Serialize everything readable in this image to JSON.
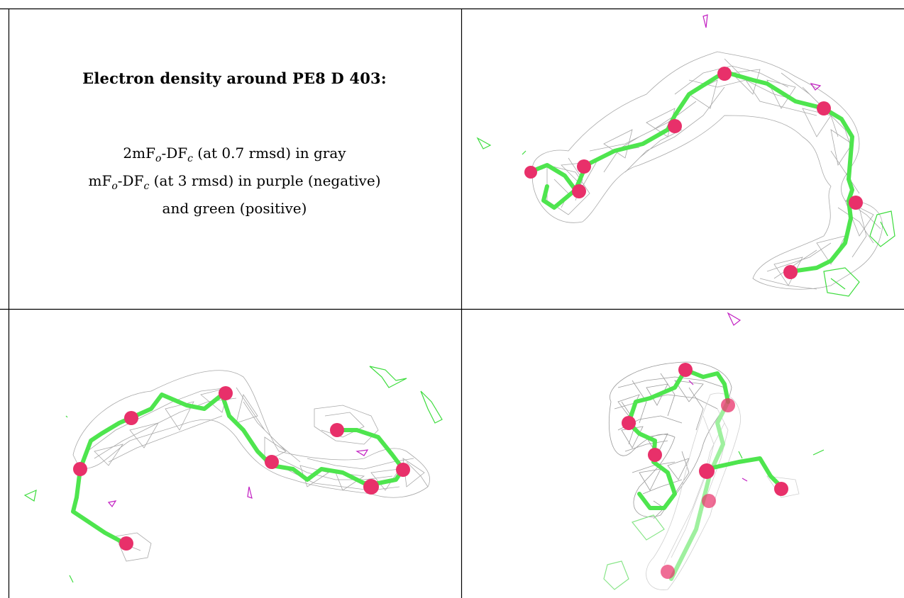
{
  "caption": {
    "title": "Electron density around PE8 D 403:",
    "line1_pre": "2mF",
    "line1_sub1": "o",
    "line1_mid": "-DF",
    "line1_sub2": "c",
    "line1_post": " (at 0.7 rmsd) in gray",
    "line2_pre": "mF",
    "line2_sub1": "o",
    "line2_mid": "-DF",
    "line2_sub2": "c",
    "line2_post": " (at 3 rmsd) in purple (negative)",
    "line3": "and green (positive)"
  },
  "colors": {
    "mesh": "#9a9a9a",
    "carbon": "#4ee54e",
    "oxygen": "#e8306a",
    "negative": "#c21fc2",
    "positive": "#3ddc3d",
    "border": "#000000"
  },
  "panels": [
    {
      "name": "view-top-right"
    },
    {
      "name": "view-bottom-left"
    },
    {
      "name": "view-bottom-right"
    }
  ]
}
